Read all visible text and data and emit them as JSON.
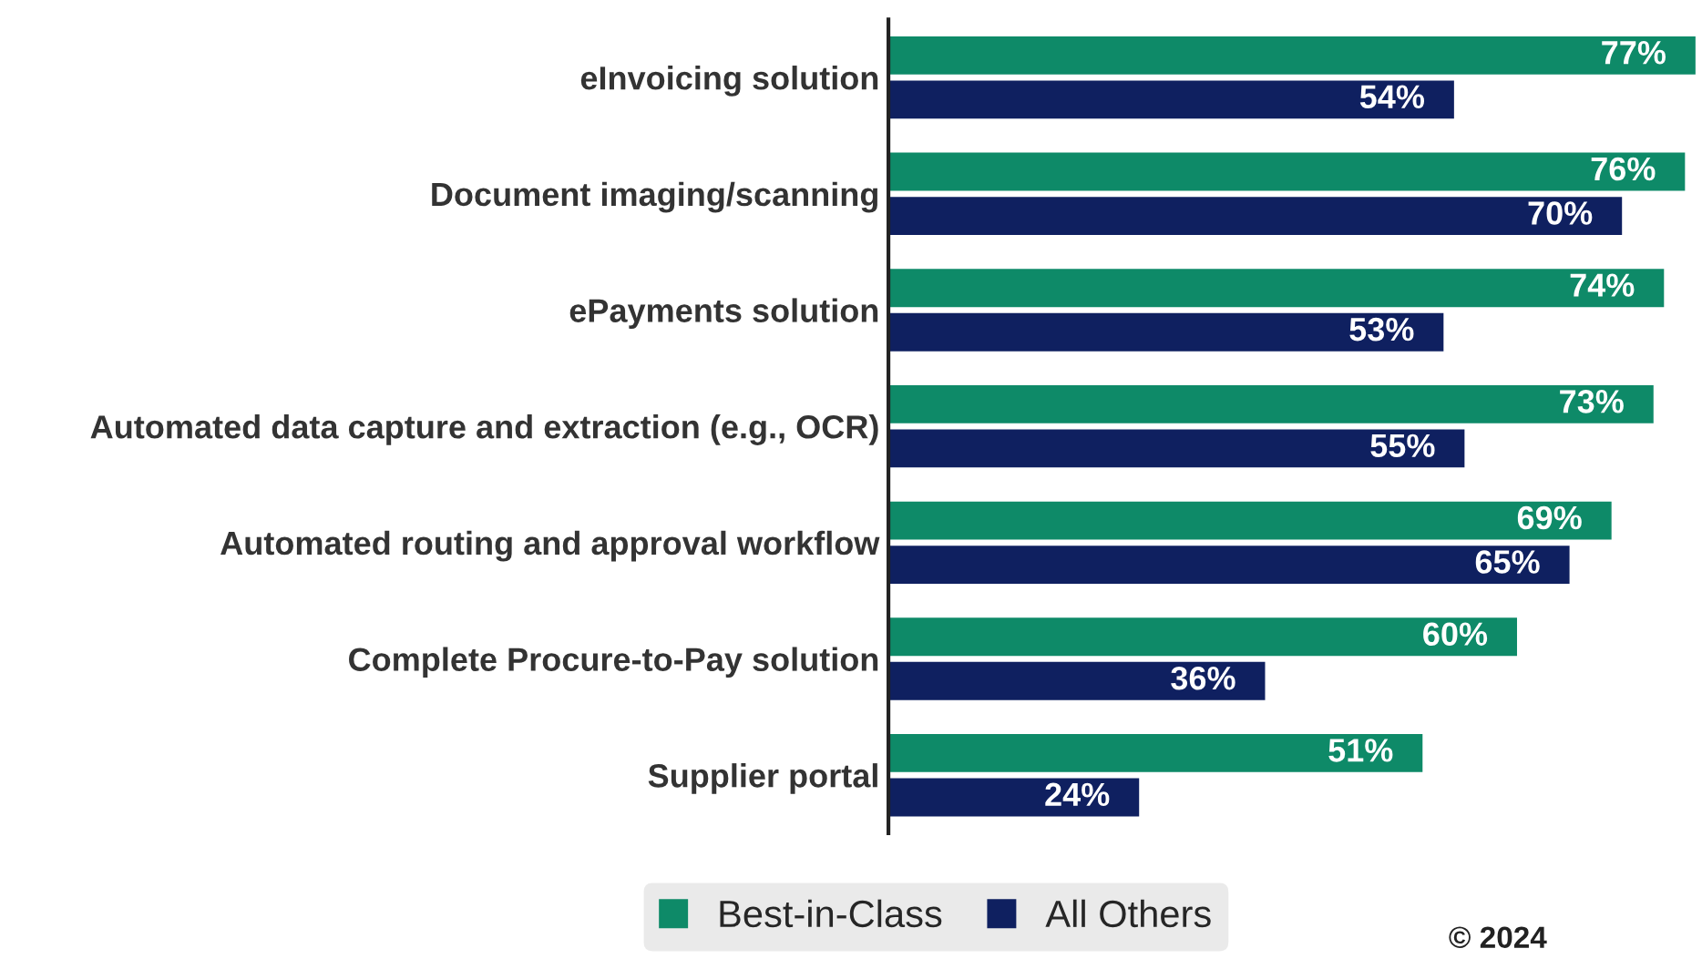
{
  "chart_data": {
    "type": "bar",
    "orientation": "horizontal",
    "categories": [
      "eInvoicing solution",
      "Document imaging/scanning",
      "ePayments solution",
      "Automated data capture and extraction (e.g., OCR)",
      "Automated routing and approval workflow",
      "Complete Procure-to-Pay solution",
      "Supplier portal"
    ],
    "series": [
      {
        "name": "Best-in-Class",
        "color": "#0e8a68",
        "values": [
          77,
          76,
          74,
          73,
          69,
          60,
          51
        ],
        "value_labels": [
          "77%",
          "76%",
          "74%",
          "73%",
          "69%",
          "60%",
          "51%"
        ]
      },
      {
        "name": "All Others",
        "color": "#0f2060",
        "values": [
          54,
          70,
          53,
          55,
          65,
          36,
          24
        ],
        "value_labels": [
          "54%",
          "70%",
          "53%",
          "55%",
          "65%",
          "36%",
          "24%"
        ]
      }
    ],
    "xlim": [
      0,
      77.5
    ],
    "tick_labels": "y",
    "grid": false,
    "legend": "bottom",
    "annotations": [
      "© 2024"
    ]
  }
}
